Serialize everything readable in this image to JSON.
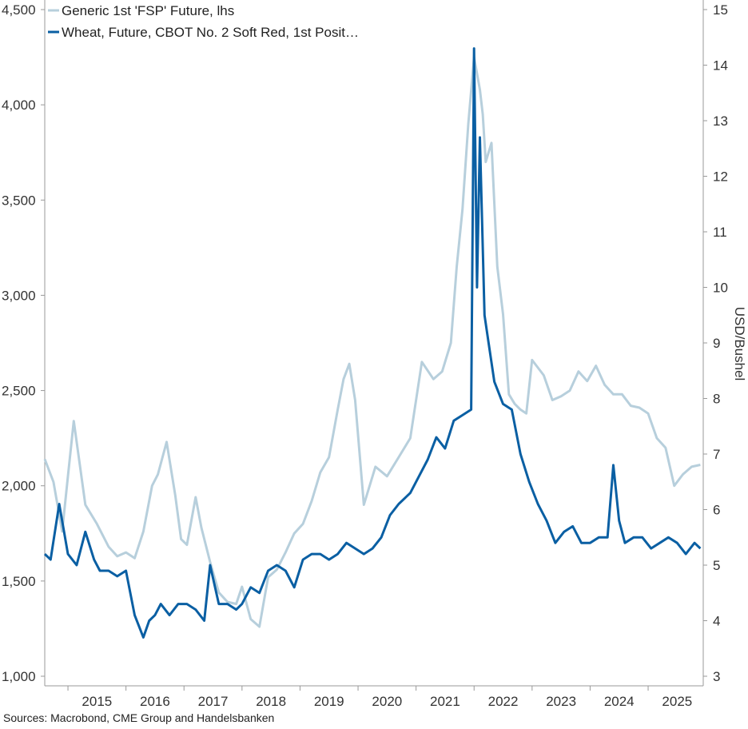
{
  "chart_data": {
    "type": "line",
    "title": "",
    "source": "Sources: Macrobond, CME Group and Handelsbanken",
    "y_left": {
      "label": "",
      "ticks": [
        "1,000",
        "1,500",
        "2,000",
        "2,500",
        "3,000",
        "3,500",
        "4,000",
        "4,500"
      ],
      "range": [
        1000,
        4500
      ]
    },
    "y_right": {
      "label": "USD/Bushel",
      "ticks": [
        "3",
        "4",
        "5",
        "6",
        "7",
        "8",
        "9",
        "10",
        "11",
        "12",
        "13",
        "14",
        "15"
      ],
      "range": [
        3,
        15
      ]
    },
    "x_axis": {
      "ticks": [
        "2015",
        "2016",
        "2017",
        "2018",
        "2019",
        "2020",
        "2021",
        "2022",
        "2023",
        "2024",
        "2025"
      ],
      "range": [
        2014.6,
        2025.95
      ]
    },
    "legend": [
      {
        "label": "Generic 1st 'FSP' Future, lhs",
        "color": "#b7cfdc"
      },
      {
        "label": "Wheat, Future, CBOT No. 2 Soft Red, 1st Posit…",
        "color": "#0a5fa3"
      }
    ],
    "series": [
      {
        "name": "Generic 1st 'FSP' Future, lhs",
        "axis": "left",
        "color": "#b7cfdc",
        "x": [
          2014.6,
          2014.75,
          2014.9,
          2015.0,
          2015.1,
          2015.3,
          2015.5,
          2015.7,
          2015.85,
          2016.0,
          2016.15,
          2016.3,
          2016.45,
          2016.55,
          2016.7,
          2016.85,
          2016.95,
          2017.05,
          2017.2,
          2017.3,
          2017.45,
          2017.6,
          2017.75,
          2017.9,
          2018.0,
          2018.15,
          2018.3,
          2018.45,
          2018.6,
          2018.75,
          2018.9,
          2019.05,
          2019.2,
          2019.35,
          2019.5,
          2019.65,
          2019.75,
          2019.85,
          2019.95,
          2020.1,
          2020.3,
          2020.5,
          2020.7,
          2020.9,
          2021.1,
          2021.3,
          2021.45,
          2021.6,
          2021.7,
          2021.8,
          2021.9,
          2022.0,
          2022.1,
          2022.15,
          2022.2,
          2022.3,
          2022.4,
          2022.5,
          2022.6,
          2022.7,
          2022.8,
          2022.9,
          2023.0,
          2023.2,
          2023.35,
          2023.5,
          2023.65,
          2023.8,
          2023.95,
          2024.1,
          2024.25,
          2024.4,
          2024.55,
          2024.7,
          2024.85,
          2025.0,
          2025.15,
          2025.3,
          2025.45,
          2025.6,
          2025.75,
          2025.9
        ],
        "values": [
          2140,
          2020,
          1760,
          2050,
          2340,
          1900,
          1800,
          1680,
          1630,
          1650,
          1620,
          1760,
          2000,
          2060,
          2230,
          1950,
          1720,
          1690,
          1940,
          1780,
          1600,
          1440,
          1390,
          1380,
          1470,
          1300,
          1260,
          1520,
          1560,
          1650,
          1750,
          1800,
          1920,
          2070,
          2150,
          2400,
          2560,
          2640,
          2450,
          1900,
          2100,
          2050,
          2150,
          2250,
          2650,
          2560,
          2600,
          2750,
          3150,
          3450,
          3900,
          4250,
          4080,
          3950,
          3700,
          3800,
          3150,
          2900,
          2480,
          2430,
          2400,
          2380,
          2660,
          2580,
          2450,
          2470,
          2500,
          2600,
          2550,
          2630,
          2530,
          2480,
          2480,
          2420,
          2410,
          2380,
          2250,
          2200,
          2000,
          2060,
          2100,
          2110
        ]
      },
      {
        "name": "Wheat, Future, CBOT No. 2 Soft Red, 1st Posit…",
        "axis": "right",
        "color": "#0a5fa3",
        "x": [
          2014.6,
          2014.7,
          2014.85,
          2015.0,
          2015.15,
          2015.3,
          2015.45,
          2015.55,
          2015.7,
          2015.85,
          2016.0,
          2016.15,
          2016.3,
          2016.4,
          2016.5,
          2016.6,
          2016.75,
          2016.9,
          2017.05,
          2017.2,
          2017.35,
          2017.45,
          2017.6,
          2017.75,
          2017.9,
          2018.0,
          2018.15,
          2018.3,
          2018.45,
          2018.6,
          2018.75,
          2018.9,
          2019.05,
          2019.2,
          2019.35,
          2019.5,
          2019.65,
          2019.8,
          2019.95,
          2020.1,
          2020.25,
          2020.4,
          2020.55,
          2020.7,
          2020.9,
          2021.05,
          2021.2,
          2021.35,
          2021.5,
          2021.65,
          2021.8,
          2021.95,
          2022.0,
          2022.05,
          2022.1,
          2022.18,
          2022.25,
          2022.35,
          2022.5,
          2022.65,
          2022.8,
          2022.95,
          2023.1,
          2023.25,
          2023.4,
          2023.55,
          2023.7,
          2023.85,
          2024.0,
          2024.15,
          2024.3,
          2024.4,
          2024.5,
          2024.6,
          2024.75,
          2024.9,
          2025.05,
          2025.2,
          2025.35,
          2025.5,
          2025.65,
          2025.8,
          2025.9
        ],
        "values": [
          5.2,
          5.1,
          6.1,
          5.2,
          5.0,
          5.6,
          5.1,
          4.9,
          4.9,
          4.8,
          4.9,
          4.1,
          3.7,
          4.0,
          4.1,
          4.3,
          4.1,
          4.3,
          4.3,
          4.2,
          4.0,
          5.0,
          4.3,
          4.3,
          4.2,
          4.3,
          4.6,
          4.5,
          4.9,
          5.0,
          4.9,
          4.6,
          5.1,
          5.2,
          5.2,
          5.1,
          5.2,
          5.4,
          5.3,
          5.2,
          5.3,
          5.5,
          5.9,
          6.1,
          6.3,
          6.6,
          6.9,
          7.3,
          7.1,
          7.6,
          7.7,
          7.8,
          14.3,
          10.0,
          12.7,
          9.5,
          9.0,
          8.3,
          7.9,
          7.8,
          7.0,
          6.5,
          6.1,
          5.8,
          5.4,
          5.6,
          5.7,
          5.4,
          5.4,
          5.5,
          5.5,
          6.8,
          5.8,
          5.4,
          5.5,
          5.5,
          5.3,
          5.4,
          5.5,
          5.4,
          5.2,
          5.4,
          5.3
        ]
      }
    ],
    "grid": false
  }
}
